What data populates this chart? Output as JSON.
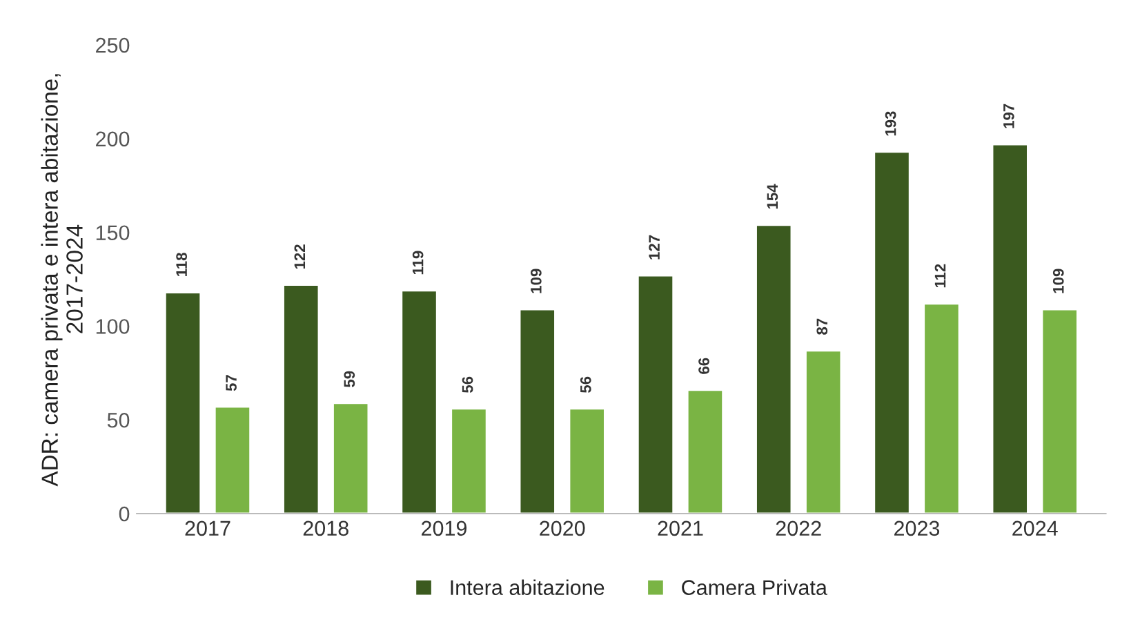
{
  "chart_data": {
    "type": "bar",
    "ylabel": "ADR: camera privata e intera abitazione,\n2017-2024",
    "categories": [
      "2017",
      "2018",
      "2019",
      "2020",
      "2021",
      "2022",
      "2023",
      "2024"
    ],
    "series": [
      {
        "name": "Intera abitazione",
        "color": "#3b5a1f",
        "values": [
          118,
          122,
          119,
          109,
          127,
          154,
          193,
          197
        ]
      },
      {
        "name": "Camera Privata",
        "color": "#7ab444",
        "values": [
          57,
          59,
          56,
          56,
          66,
          87,
          112,
          109
        ]
      }
    ],
    "ylim": [
      0,
      250
    ],
    "yticks": [
      0,
      50,
      100,
      150,
      200,
      250
    ],
    "data_labels": true,
    "legend": "bottom",
    "grid": false
  }
}
